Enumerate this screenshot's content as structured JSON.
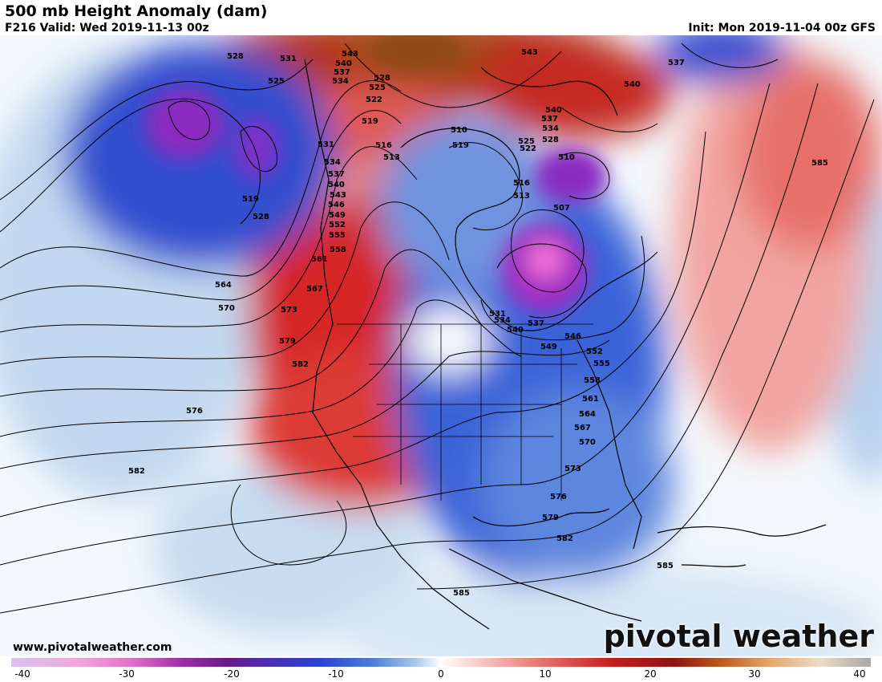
{
  "header": {
    "title": "500 mb Height Anomaly (dam)",
    "valid": "F216 Valid: Wed 2019-11-13 00z",
    "init": "Init: Mon 2019-11-04 00z GFS"
  },
  "footer": {
    "website": "www.pivotalweather.com",
    "brand": "pivotal weather"
  },
  "colorbar": {
    "ticks": [
      "-40",
      "-30",
      "-20",
      "-10",
      "0",
      "10",
      "20",
      "30",
      "40"
    ],
    "range": [
      -40,
      40
    ]
  },
  "contour_labels": [
    "528",
    "531",
    "543",
    "540",
    "537",
    "534",
    "525",
    "528",
    "525",
    "522",
    "519",
    "516",
    "513",
    "531",
    "534",
    "537",
    "540",
    "543",
    "546",
    "549",
    "552",
    "555",
    "558",
    "561",
    "564",
    "567",
    "570",
    "573",
    "576",
    "579",
    "582",
    "585",
    "510",
    "507",
    "519",
    "522",
    "525",
    "528",
    "534",
    "537",
    "540",
    "543",
    "546",
    "549",
    "552",
    "555",
    "558",
    "561",
    "564",
    "567",
    "570",
    "573",
    "576",
    "579",
    "582",
    "585",
    "531",
    "534",
    "537",
    "540",
    "519",
    "528",
    "516",
    "513",
    "510",
    "537",
    "540",
    "585",
    "582"
  ],
  "colors": {
    "neg_strong": "#9d1fb8",
    "neg": "#2f4bd6",
    "neg_light": "#b8d4ee",
    "pos": "#c81e1e",
    "pos_light": "#f3b9b6",
    "pos_strong": "#a8460f"
  }
}
